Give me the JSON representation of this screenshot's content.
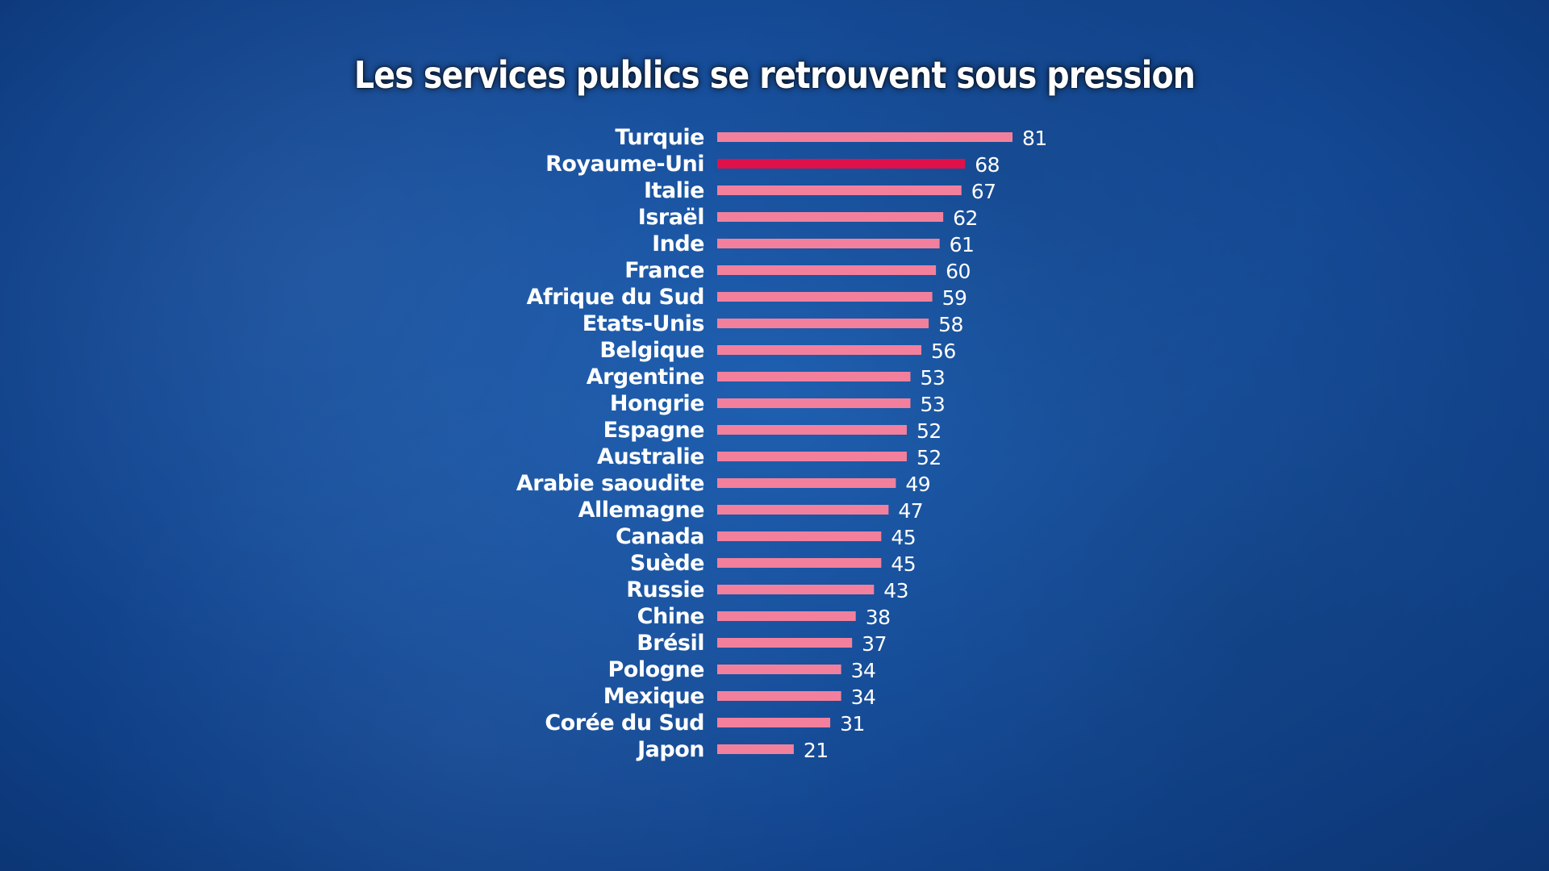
{
  "chart_data": {
    "type": "bar",
    "orientation": "horizontal",
    "title": "Les services publics se retrouvent sous pression",
    "categories": [
      "Turquie",
      "Royaume-Uni",
      "Italie",
      "Israël",
      "Inde",
      "France",
      "Afrique du Sud",
      "Etats-Unis",
      "Belgique",
      "Argentine",
      "Hongrie",
      "Espagne",
      "Australie",
      "Arabie saoudite",
      "Allemagne",
      "Canada",
      "Suède",
      "Russie",
      "Chine",
      "Brésil",
      "Pologne",
      "Mexique",
      "Corée du Sud",
      "Japon"
    ],
    "values": [
      81,
      68,
      67,
      62,
      61,
      60,
      59,
      58,
      56,
      53,
      53,
      52,
      52,
      49,
      47,
      45,
      45,
      43,
      38,
      37,
      34,
      34,
      31,
      21
    ],
    "highlight": "Royaume-Uni",
    "colors": {
      "bar": "#f2809c",
      "highlight": "#e0114a",
      "text": "#ffffff",
      "background": "#174f9c"
    },
    "grid": false,
    "legend": "none"
  }
}
